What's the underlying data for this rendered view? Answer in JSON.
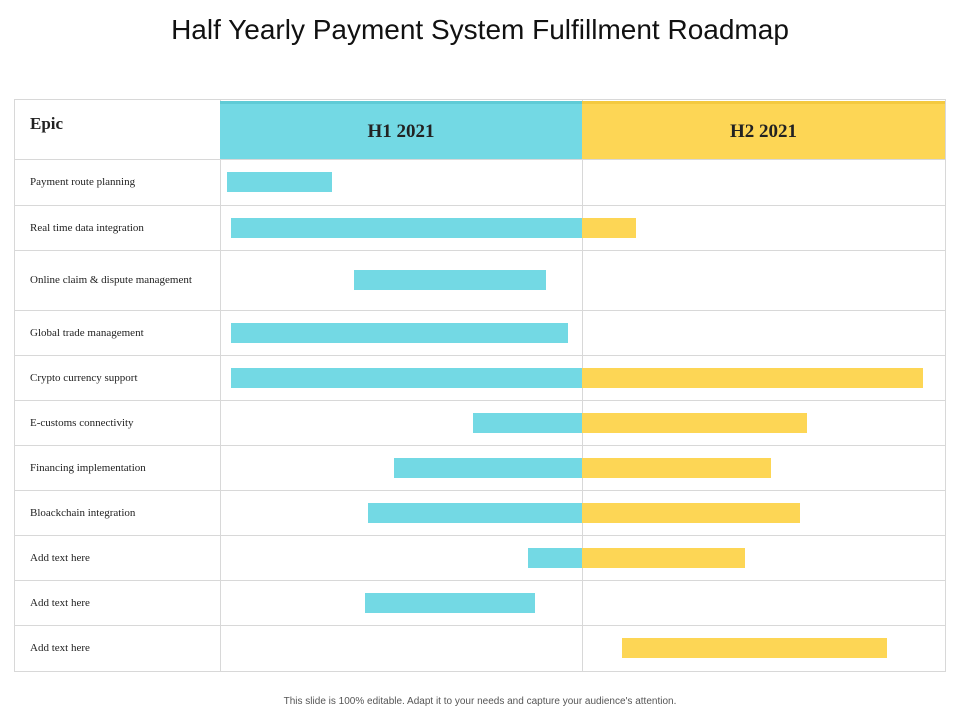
{
  "title": "Half Yearly Payment System Fulfillment Roadmap",
  "header": {
    "epic_label": "Epic",
    "periods": [
      {
        "label": "H1 2021",
        "color": "#73d9e4"
      },
      {
        "label": "H2 2021",
        "color": "#fdd655"
      }
    ]
  },
  "colors": {
    "h1_bar": "#73d9e4",
    "h2_bar": "#fdd655",
    "grid": "#d8d8d8"
  },
  "rows": [
    {
      "label": "Payment route planning",
      "h1": [
        0.02,
        0.31
      ],
      "h2": null
    },
    {
      "label": "Real time data integration",
      "h1": [
        0.03,
        1.0
      ],
      "h2": [
        0.0,
        0.15
      ]
    },
    {
      "label": "Online claim & dispute management",
      "h1": [
        0.37,
        0.9
      ],
      "h2": null
    },
    {
      "label": "Global trade management",
      "h1": [
        0.03,
        0.96
      ],
      "h2": null
    },
    {
      "label": "Crypto currency support",
      "h1": [
        0.03,
        1.0
      ],
      "h2": [
        0.0,
        0.94
      ]
    },
    {
      "label": "E-customs connectivity",
      "h1": [
        0.7,
        1.0
      ],
      "h2": [
        0.0,
        0.62
      ]
    },
    {
      "label": "Financing implementation",
      "h1": [
        0.48,
        1.0
      ],
      "h2": [
        0.0,
        0.52
      ]
    },
    {
      "label": "Bloackchain integration",
      "h1": [
        0.41,
        1.0
      ],
      "h2": [
        0.0,
        0.6
      ]
    },
    {
      "label": "Add text here",
      "h1": [
        0.85,
        1.0
      ],
      "h2": [
        0.0,
        0.45
      ]
    },
    {
      "label": "Add text here",
      "h1": [
        0.4,
        0.87
      ],
      "h2": null
    },
    {
      "label": "Add text here",
      "h1": null,
      "h2": [
        0.11,
        0.84
      ]
    }
  ],
  "footer": "This slide is 100% editable.  Adapt it to your needs and capture your audience's attention."
}
